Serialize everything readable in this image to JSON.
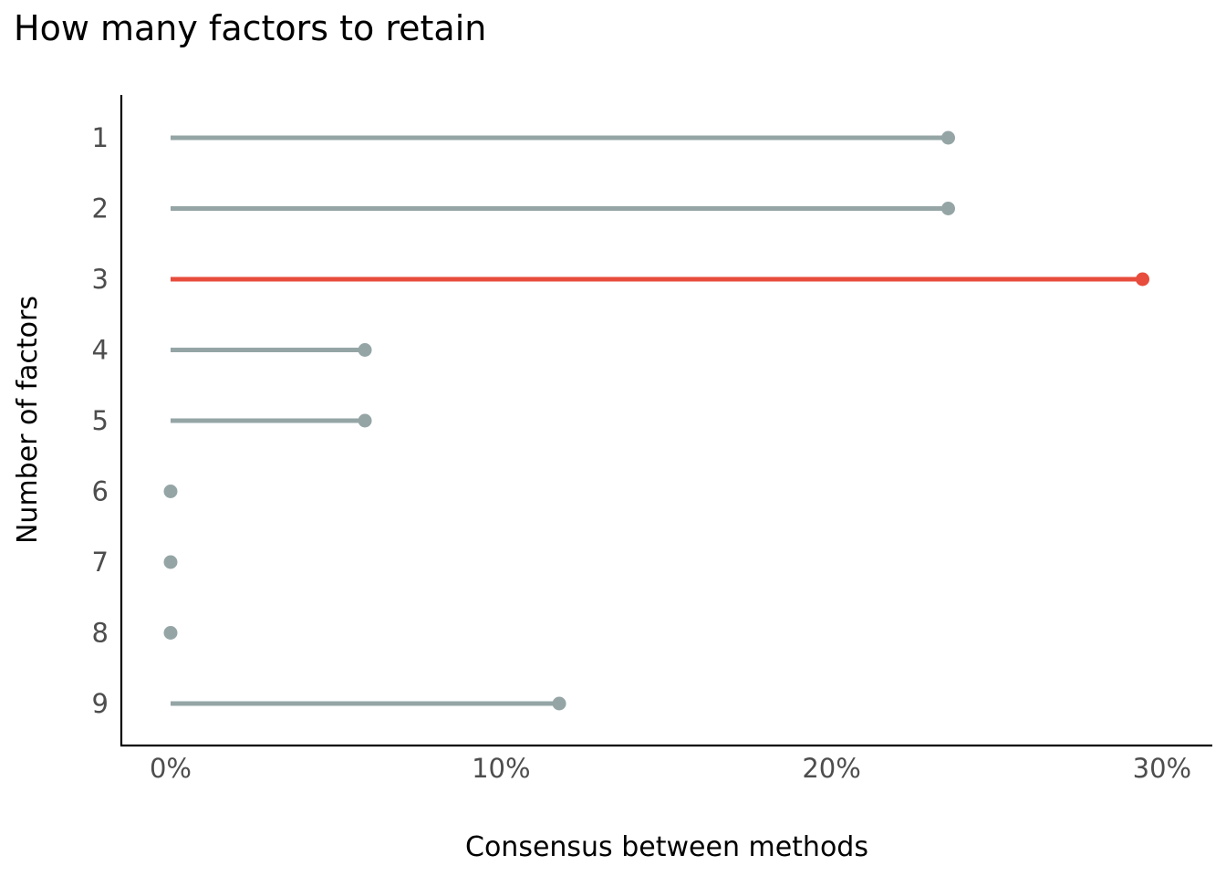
{
  "chart_data": {
    "type": "lollipop",
    "title": "How many factors to retain",
    "xlabel": "Consensus between methods",
    "ylabel": "Number of factors",
    "categories": [
      "1",
      "2",
      "3",
      "4",
      "5",
      "6",
      "7",
      "8",
      "9"
    ],
    "values": [
      0.2353,
      0.2353,
      0.2941,
      0.0588,
      0.0588,
      0.0,
      0.0,
      0.0,
      0.1176
    ],
    "highlight_index": 2,
    "xlim": [
      0,
      0.3
    ],
    "x_ticks": [
      0,
      0.1,
      0.2,
      0.3
    ],
    "x_tick_labels": [
      "0%",
      "10%",
      "20%",
      "30%"
    ],
    "grid": false,
    "legend": "none",
    "colors": {
      "default": "#95a5a6",
      "highlight": "#e74c3c"
    }
  }
}
